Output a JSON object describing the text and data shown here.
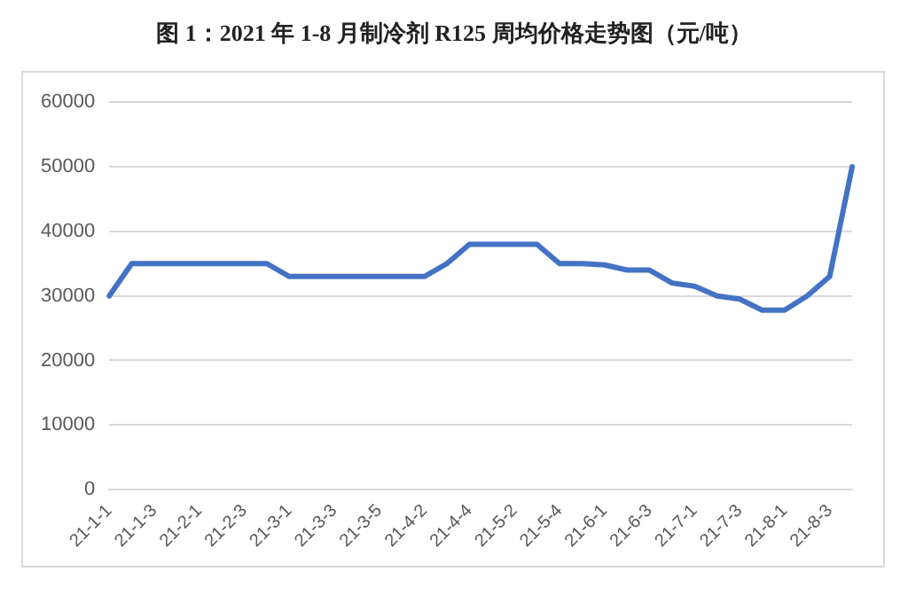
{
  "chart_data": {
    "type": "line",
    "title": "图 1：2021 年 1-8 月制冷剂 R125 周均价格走势图（元/吨）",
    "categories": [
      "21-1-1",
      null,
      "21-1-3",
      null,
      "21-2-1",
      null,
      "21-2-3",
      null,
      "21-3-1",
      null,
      "21-3-3",
      null,
      "21-3-5",
      null,
      "21-4-2",
      null,
      "21-4-4",
      null,
      "21-5-2",
      null,
      "21-5-4",
      null,
      "21-6-1",
      null,
      "21-6-3",
      null,
      "21-7-1",
      null,
      "21-7-3",
      null,
      "21-8-1",
      null,
      "21-8-3",
      null
    ],
    "series": [
      {
        "color": "#4472c4",
        "values": [
          30000,
          35000,
          35000,
          35000,
          35000,
          35000,
          35000,
          35000,
          33000,
          33000,
          33000,
          33000,
          33000,
          33000,
          33000,
          35000,
          38000,
          38000,
          38000,
          38000,
          35000,
          35000,
          34800,
          34000,
          34000,
          32000,
          31500,
          30000,
          29500,
          27800,
          27800,
          30000,
          33000,
          50000
        ]
      }
    ],
    "ylim": [
      0,
      60000
    ],
    "yticks": [
      0,
      10000,
      20000,
      30000,
      40000,
      50000,
      60000
    ],
    "grid": "y",
    "legend": false,
    "marker": "none",
    "line_style": "solid"
  }
}
